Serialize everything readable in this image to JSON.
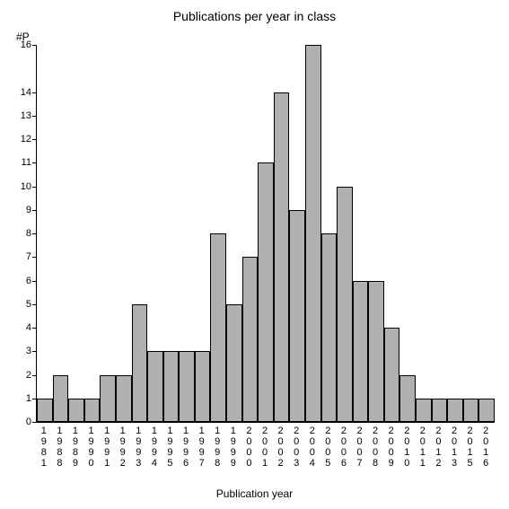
{
  "chart": {
    "type": "bar",
    "title": "Publications per year in class",
    "title_fontsize": 14,
    "xlabel": "Publication year",
    "ylabel": "#P",
    "label_fontsize": 12,
    "background_color": "#ffffff",
    "bar_color": "#b0b0b0",
    "bar_border_color": "#000000",
    "axis_color": "#000000",
    "text_color": "#000000",
    "tick_fontsize": 11,
    "ylim": [
      0,
      16
    ],
    "ytick_step": 1,
    "yticks": [
      0,
      1,
      2,
      3,
      4,
      5,
      6,
      7,
      8,
      9,
      10,
      11,
      12,
      13,
      14,
      16
    ],
    "bar_width": 1.0,
    "categories": [
      "1981",
      "1988",
      "1989",
      "1990",
      "1991",
      "1992",
      "1993",
      "1994",
      "1995",
      "1996",
      "1997",
      "1998",
      "1999",
      "2000",
      "2001",
      "2002",
      "2003",
      "2004",
      "2005",
      "2006",
      "2007",
      "2008",
      "2009",
      "2010",
      "2011",
      "2012",
      "2013",
      "2015",
      "2016"
    ],
    "values": [
      1,
      2,
      1,
      1,
      2,
      2,
      5,
      3,
      3,
      3,
      3,
      8,
      5,
      7,
      11,
      14,
      9,
      16,
      8,
      10,
      6,
      6,
      4,
      2,
      1,
      1,
      1,
      1,
      1
    ]
  }
}
